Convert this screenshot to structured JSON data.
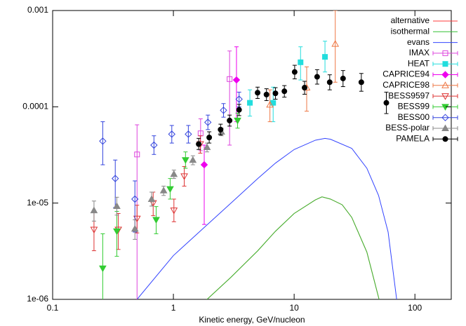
{
  "chart_data": {
    "type": "line",
    "xlabel": "Kinetic energy, GeV/nucleon",
    "log_x": true,
    "log_y": true,
    "xlim": [
      0.1,
      200
    ],
    "ylim": [
      1e-06,
      0.001
    ],
    "xticks": [
      0.1,
      1,
      10,
      100
    ],
    "yticks": [
      {
        "value": 1e-06,
        "label": "1e-06"
      },
      {
        "value": 1e-05,
        "label": "1e-05"
      },
      {
        "value": 0.0001,
        "label": "0.0001"
      },
      {
        "value": 0.001,
        "label": "0.001"
      }
    ],
    "legend": "upper right",
    "series": [
      {
        "name": "alternative",
        "type": "line",
        "color": "#ff3b3b",
        "x": [
          1.9,
          3,
          5,
          7,
          10,
          15,
          17,
          20,
          25,
          30,
          40,
          50.5
        ],
        "values": [
          1e-06,
          1.7e-06,
          3.2e-06,
          5.1e-06,
          7.8e-06,
          1.08e-05,
          1.16e-05,
          1.1e-05,
          9.6e-06,
          7.1e-06,
          3.1e-06,
          1e-06
        ]
      },
      {
        "name": "isothermal",
        "type": "line",
        "color": "#33c033",
        "x": [
          1.9,
          3,
          5,
          7,
          10,
          15,
          17,
          20,
          25,
          30,
          40,
          50.5
        ],
        "values": [
          1e-06,
          1.7e-06,
          3.2e-06,
          5.1e-06,
          7.8e-06,
          1.08e-05,
          1.16e-05,
          1.1e-05,
          9.6e-06,
          7.1e-06,
          3.1e-06,
          1e-06
        ]
      },
      {
        "name": "evans",
        "type": "line",
        "color": "#3344ff",
        "x": [
          0.5,
          1,
          2,
          3,
          5,
          7,
          10,
          15,
          18,
          20,
          30,
          40,
          50,
          60,
          70.6
        ],
        "values": [
          1e-06,
          2.85e-06,
          6.3e-06,
          1e-05,
          1.8e-05,
          2.6e-05,
          3.6e-05,
          4.5e-05,
          4.7e-05,
          4.6e-05,
          3.7e-05,
          2.3e-05,
          1.2e-05,
          5e-06,
          1e-06
        ]
      },
      {
        "name": "IMAX",
        "type": "scatter",
        "marker": "open-square",
        "color": "#dd44dd",
        "x": [
          0.5,
          1.68,
          2.92
        ],
        "values": [
          3.2e-05,
          5.3e-05,
          0.000194
        ],
        "ylow": [
          9e-07,
          3.5e-05,
          4e-05
        ],
        "yhigh": [
          6.5e-05,
          7.5e-05,
          0.00038
        ]
      },
      {
        "name": "HEAT",
        "type": "scatter",
        "marker": "filled-square",
        "color": "#22dddd",
        "x": [
          4.3,
          6.7,
          11.3,
          18
        ],
        "values": [
          0.00011,
          0.00011,
          0.00029,
          0.00033
        ],
        "ylow": [
          8e-05,
          7e-05,
          0.00019,
          0.00023
        ],
        "yhigh": [
          0.00015,
          0.00016,
          0.00042,
          0.00048
        ]
      },
      {
        "name": "CAPRICE94",
        "type": "scatter",
        "marker": "filled-diamond",
        "color": "#ee00ee",
        "x": [
          1.8,
          3.33
        ],
        "values": [
          2.5e-05,
          0.00019
        ],
        "ylow": [
          6e-06,
          7e-05
        ],
        "yhigh": [
          4e-05,
          0.00042
        ]
      },
      {
        "name": "CAPRICE98",
        "type": "scatter",
        "marker": "open-triangle-up",
        "color": "#ee7744",
        "x": [
          6.3,
          12.7,
          21.9
        ],
        "values": [
          0.000105,
          0.000158,
          0.00045
        ],
        "ylow": [
          7e-05,
          9e-05,
          0.00018
        ],
        "yhigh": [
          0.00015,
          0.00026,
          0.001
        ]
      },
      {
        "name": "BESS9597",
        "type": "scatter",
        "marker": "open-triangle-down",
        "color": "#dd3333",
        "x": [
          0.22,
          0.35,
          0.5,
          0.68,
          1.01,
          1.23,
          1.67
        ],
        "values": [
          5.3e-06,
          5.3e-06,
          6.9e-06,
          1e-05,
          8.4e-06,
          1.9e-05,
          4.1e-05
        ],
        "ylow": [
          3.2e-06,
          3.3e-06,
          4.9e-06,
          7.4e-06,
          6.4e-06,
          1.5e-05,
          3.3e-05
        ],
        "yhigh": [
          8e-06,
          7.8e-06,
          9.5e-06,
          1.3e-05,
          1.1e-05,
          2.4e-05,
          5e-05
        ]
      },
      {
        "name": "BESS99",
        "type": "scatter",
        "marker": "filled-triangle-down",
        "color": "#33cc33",
        "x": [
          0.26,
          0.34,
          0.72,
          0.94,
          1.26,
          3.4
        ],
        "values": [
          2.1e-06,
          5.1e-06,
          6.7e-06,
          1.4e-05,
          2.8e-05,
          7.2e-05
        ],
        "ylow": [
          9e-07,
          2.8e-06,
          4.8e-06,
          1.1e-05,
          2.3e-05,
          6e-05
        ],
        "yhigh": [
          4.8e-06,
          8.2e-06,
          9.2e-06,
          1.8e-05,
          3.4e-05,
          8.6e-05
        ]
      },
      {
        "name": "BESS00",
        "type": "scatter",
        "marker": "open-diamond",
        "color": "#3344dd",
        "x": [
          0.26,
          0.33,
          0.48,
          0.69,
          0.97,
          1.33,
          1.93,
          2.6,
          3.5
        ],
        "values": [
          4.4e-05,
          1.8e-05,
          1.1e-05,
          4e-05,
          5.2e-05,
          5.2e-05,
          6.9e-05,
          9.2e-05,
          0.00012
        ],
        "ylow": [
          2.5e-05,
          9e-06,
          5e-06,
          3.2e-05,
          4.2e-05,
          4.2e-05,
          5.8e-05,
          7.8e-05,
          0.0001
        ],
        "yhigh": [
          7e-05,
          2.8e-05,
          1.7e-05,
          5e-05,
          6.4e-05,
          6.4e-05,
          8.2e-05,
          0.000108,
          0.000142
        ]
      },
      {
        "name": "BESS-polar",
        "type": "scatter",
        "marker": "filled-triangle-up",
        "color": "#888888",
        "x": [
          0.22,
          0.34,
          0.48,
          0.66,
          0.83,
          1.01,
          1.45,
          1.9,
          2.5
        ],
        "values": [
          8.4e-06,
          9.3e-06,
          5.4e-06,
          1.1e-05,
          1.35e-05,
          2e-05,
          2.8e-05,
          3.8e-05,
          5.5e-05
        ],
        "ylow": [
          6.5e-06,
          7.5e-06,
          4.2e-06,
          9.3e-06,
          1.2e-05,
          1.8e-05,
          2.5e-05,
          3.4e-05,
          5e-05
        ],
        "yhigh": [
          1.05e-05,
          1.15e-05,
          6.7e-06,
          1.3e-05,
          1.5e-05,
          2.2e-05,
          3.1e-05,
          4.2e-05,
          6e-05
        ]
      },
      {
        "name": "PAMELA",
        "type": "scatter",
        "marker": "filled-circle",
        "color": "#000000",
        "x": [
          1.62,
          1.98,
          2.46,
          2.92,
          3.5,
          4.98,
          5.9,
          7,
          8.3,
          10.1,
          12.2,
          15.5,
          19.7,
          25.4,
          36,
          58
        ],
        "values": [
          4.1e-05,
          4.8e-05,
          5.8e-05,
          7.2e-05,
          9.3e-05,
          0.00014,
          0.000134,
          0.000138,
          0.000145,
          0.00023,
          0.000158,
          0.000205,
          0.00018,
          0.000197,
          0.00018,
          0.00011
        ],
        "ylow": [
          3.6e-05,
          4.2e-05,
          5.1e-05,
          6.3e-05,
          8.1e-05,
          0.000122,
          0.000116,
          0.00012,
          0.000126,
          0.000195,
          0.000135,
          0.000172,
          0.00015,
          0.000162,
          0.000145,
          8.5e-05
        ],
        "yhigh": [
          4.7e-05,
          5.5e-05,
          6.6e-05,
          8.2e-05,
          0.000106,
          0.00016,
          0.000154,
          0.000158,
          0.000166,
          0.00027,
          0.000184,
          0.000243,
          0.000215,
          0.000238,
          0.000222,
          0.000142
        ]
      }
    ]
  }
}
